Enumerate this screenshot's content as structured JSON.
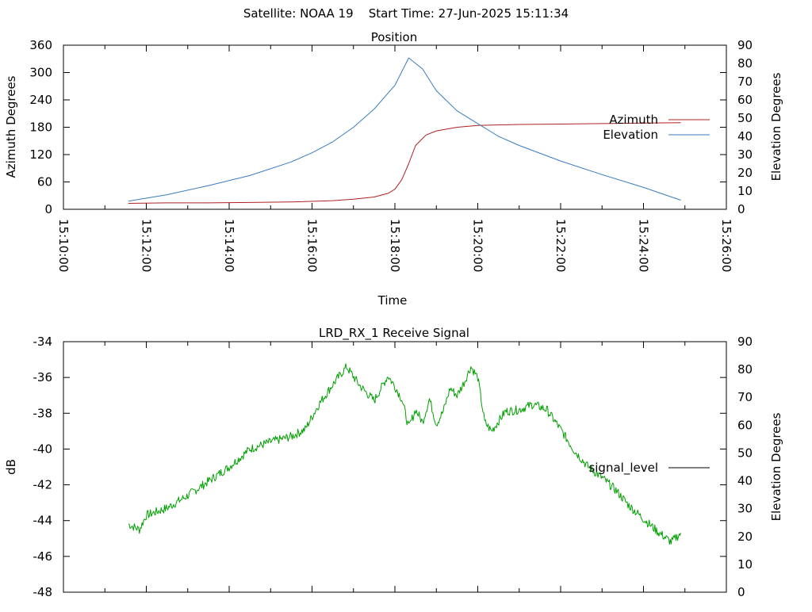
{
  "figure": {
    "suptitle": "Satellite: NOAA 19    Start Time: 27-Jun-2025 15:11:34"
  },
  "chart_data": [
    {
      "type": "line",
      "title": "Position",
      "xlabel": "Time",
      "ylabel": "Azimuth Degrees",
      "y2label": "Elevation Degrees",
      "xlim": [
        "15:10:00",
        "15:26:00"
      ],
      "ylim": [
        0,
        360
      ],
      "y2lim": [
        0,
        90
      ],
      "xticks": [
        "15:10:00",
        "15:12:00",
        "15:14:00",
        "15:16:00",
        "15:18:00",
        "15:20:00",
        "15:22:00",
        "15:24:00",
        "15:26:00"
      ],
      "yticks": [
        0,
        60,
        120,
        180,
        240,
        300,
        360
      ],
      "y2ticks": [
        0,
        10,
        20,
        30,
        40,
        50,
        60,
        70,
        80,
        90
      ],
      "legend": "right",
      "grid": false,
      "series": [
        {
          "name": "Azimuth",
          "axis": "left",
          "color": "#b02020",
          "x": [
            "15:11:34",
            "15:12:30",
            "15:13:30",
            "15:14:30",
            "15:15:30",
            "15:16:30",
            "15:17:00",
            "15:17:30",
            "15:17:50",
            "15:18:00",
            "15:18:10",
            "15:18:20",
            "15:18:30",
            "15:18:45",
            "15:19:00",
            "15:19:30",
            "15:20:00",
            "15:21:00",
            "15:22:00",
            "15:23:00",
            "15:24:00",
            "15:24:54"
          ],
          "values": [
            13,
            14,
            14,
            15,
            16,
            19,
            22,
            27,
            35,
            44,
            65,
            100,
            140,
            163,
            172,
            180,
            184,
            186,
            187,
            188,
            189,
            190
          ]
        },
        {
          "name": "Elevation",
          "axis": "right",
          "color": "#3a7bbf",
          "x": [
            "15:11:34",
            "15:12:30",
            "15:13:30",
            "15:14:30",
            "15:15:30",
            "15:16:00",
            "15:16:30",
            "15:17:00",
            "15:17:30",
            "15:18:00",
            "15:18:20",
            "15:18:40",
            "15:19:00",
            "15:19:30",
            "15:20:00",
            "15:20:30",
            "15:21:00",
            "15:22:00",
            "15:23:00",
            "15:24:00",
            "15:24:54"
          ],
          "values": [
            4.5,
            8,
            13,
            18.5,
            26,
            31,
            37,
            45,
            55,
            68,
            83,
            77,
            65,
            54,
            47,
            40,
            35,
            26.5,
            19,
            12,
            5
          ]
        }
      ]
    },
    {
      "type": "line",
      "title": "LRD_RX_1 Receive Signal",
      "xlabel": "",
      "ylabel": "dB",
      "y2label": "Elevation Degrees",
      "xlim": [
        "15:10:00",
        "15:26:00"
      ],
      "ylim": [
        -48,
        -34
      ],
      "y2lim": [
        0,
        90
      ],
      "yticks": [
        -48,
        -46,
        -44,
        -42,
        -40,
        -38,
        -36,
        -34
      ],
      "y2ticks": [
        0,
        10,
        20,
        30,
        40,
        50,
        60,
        70,
        80,
        90
      ],
      "legend": "right",
      "grid": false,
      "series": [
        {
          "name": "signal_level",
          "axis": "left",
          "color": "#00a000",
          "legend_color": "#000000",
          "noise": 0.25,
          "x": [
            "15:11:34",
            "15:11:50",
            "15:12:00",
            "15:12:30",
            "15:13:00",
            "15:13:30",
            "15:14:00",
            "15:14:30",
            "15:15:00",
            "15:15:30",
            "15:15:50",
            "15:16:10",
            "15:16:30",
            "15:16:50",
            "15:17:10",
            "15:17:30",
            "15:17:50",
            "15:18:00",
            "15:18:10",
            "15:18:20",
            "15:18:30",
            "15:18:40",
            "15:18:50",
            "15:19:00",
            "15:19:10",
            "15:19:20",
            "15:19:30",
            "15:19:40",
            "15:19:50",
            "15:20:00",
            "15:20:10",
            "15:20:20",
            "15:20:40",
            "15:21:00",
            "15:21:20",
            "15:21:40",
            "15:22:00",
            "15:22:20",
            "15:22:40",
            "15:23:00",
            "15:23:20",
            "15:23:40",
            "15:24:00",
            "15:24:20",
            "15:24:40",
            "15:24:54"
          ],
          "values": [
            -44.2,
            -44.5,
            -43.7,
            -43.3,
            -42.6,
            -41.8,
            -41.0,
            -40.0,
            -39.6,
            -39.3,
            -38.9,
            -37.5,
            -36.4,
            -35.4,
            -36.5,
            -37.3,
            -35.9,
            -36.5,
            -37.2,
            -38.8,
            -37.8,
            -38.5,
            -37.2,
            -38.6,
            -37.9,
            -36.6,
            -37.0,
            -36.3,
            -35.4,
            -36.0,
            -38.5,
            -39.0,
            -37.9,
            -37.8,
            -37.5,
            -37.8,
            -38.9,
            -40.1,
            -41.0,
            -41.6,
            -42.3,
            -43.2,
            -43.9,
            -44.6,
            -45.2,
            -44.7
          ]
        }
      ]
    }
  ]
}
